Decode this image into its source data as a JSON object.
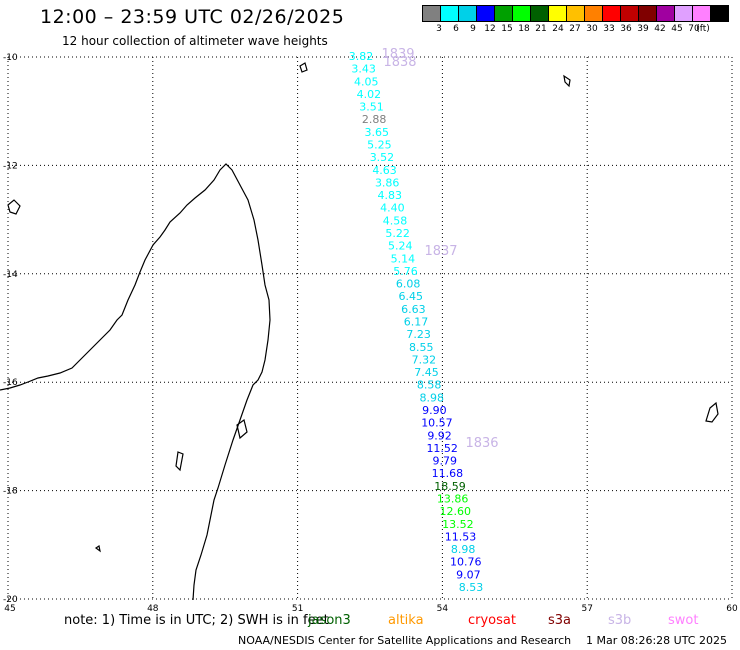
{
  "header": {
    "title": "12:00 – 23:59 UTC 02/26/2025",
    "subtitle": "12 hour collection of altimeter wave heights"
  },
  "legend": {
    "colors": [
      "#808080",
      "#00ffff",
      "#00d0e8",
      "#0000ff",
      "#00a000",
      "#00ff00",
      "#006000",
      "#ffff00",
      "#ffc000",
      "#ff8000",
      "#ff0000",
      "#c00000",
      "#800000",
      "#a000a0",
      "#e0a0ff",
      "#ff80ff",
      "#000000"
    ],
    "ticks": [
      "3",
      "6",
      "9",
      "12",
      "15",
      "18",
      "21",
      "24",
      "27",
      "30",
      "33",
      "36",
      "39",
      "42",
      "45",
      "70",
      "(ft)"
    ]
  },
  "map": {
    "lat_labels": [
      "-10",
      "-12",
      "-14",
      "-16",
      "-18",
      "-20"
    ],
    "lon_labels": [
      "45",
      "48",
      "51",
      "54",
      "57",
      "60"
    ],
    "track_times": [
      "1839",
      "1838",
      "1837",
      "1836"
    ],
    "wave_heights": [
      {
        "v": "3.82",
        "c": "#00ffff"
      },
      {
        "v": "3.43",
        "c": "#00ffff"
      },
      {
        "v": "4.05",
        "c": "#00ffff"
      },
      {
        "v": "4.02",
        "c": "#00ffff"
      },
      {
        "v": "3.51",
        "c": "#00ffff"
      },
      {
        "v": "2.88",
        "c": "#808080"
      },
      {
        "v": "3.65",
        "c": "#00ffff"
      },
      {
        "v": "5.25",
        "c": "#00ffff"
      },
      {
        "v": "3.52",
        "c": "#00ffff"
      },
      {
        "v": "4.63",
        "c": "#00ffff"
      },
      {
        "v": "3.86",
        "c": "#00ffff"
      },
      {
        "v": "4.83",
        "c": "#00ffff"
      },
      {
        "v": "4.40",
        "c": "#00ffff"
      },
      {
        "v": "4.58",
        "c": "#00ffff"
      },
      {
        "v": "5.22",
        "c": "#00ffff"
      },
      {
        "v": "5.24",
        "c": "#00ffff"
      },
      {
        "v": "5.14",
        "c": "#00ffff"
      },
      {
        "v": "5.76",
        "c": "#00ffff"
      },
      {
        "v": "6.08",
        "c": "#00d0e8"
      },
      {
        "v": "6.45",
        "c": "#00d0e8"
      },
      {
        "v": "6.63",
        "c": "#00d0e8"
      },
      {
        "v": "6.17",
        "c": "#00d0e8"
      },
      {
        "v": "7.23",
        "c": "#00d0e8"
      },
      {
        "v": "8.55",
        "c": "#00d0e8"
      },
      {
        "v": "7.32",
        "c": "#00d0e8"
      },
      {
        "v": "7.45",
        "c": "#00d0e8"
      },
      {
        "v": "8.58",
        "c": "#00d0e8"
      },
      {
        "v": "8.98",
        "c": "#00d0e8"
      },
      {
        "v": "9.90",
        "c": "#0000ff"
      },
      {
        "v": "10.57",
        "c": "#0000ff"
      },
      {
        "v": "9.92",
        "c": "#0000ff"
      },
      {
        "v": "11.52",
        "c": "#0000ff"
      },
      {
        "v": "9.79",
        "c": "#0000ff"
      },
      {
        "v": "11.68",
        "c": "#0000ff"
      },
      {
        "v": "18.59",
        "c": "#006000"
      },
      {
        "v": "13.86",
        "c": "#00ff00"
      },
      {
        "v": "12.60",
        "c": "#00ff00"
      },
      {
        "v": "13.52",
        "c": "#00ff00"
      },
      {
        "v": "11.53",
        "c": "#0000ff"
      },
      {
        "v": "8.98",
        "c": "#00d0e8"
      },
      {
        "v": "10.76",
        "c": "#0000ff"
      },
      {
        "v": "9.07",
        "c": "#0000ff"
      },
      {
        "v": "8.53",
        "c": "#00d0e8"
      }
    ]
  },
  "footer": {
    "note": "note:  1) Time is in UTC; 2) SWH is in feet",
    "missions": [
      {
        "name": "jason3",
        "color": "#006000"
      },
      {
        "name": "altika",
        "color": "#ff9900"
      },
      {
        "name": "cryosat",
        "color": "#ff0000"
      },
      {
        "name": "s3a",
        "color": "#800000"
      },
      {
        "name": "s3b",
        "color": "#c8b4e6"
      },
      {
        "name": "swot",
        "color": "#ff80ff"
      }
    ],
    "credit": "NOAA/NESDIS Center for Satellite Applications and Research",
    "date": "1 Mar 08:26:28 UTC 2025"
  }
}
